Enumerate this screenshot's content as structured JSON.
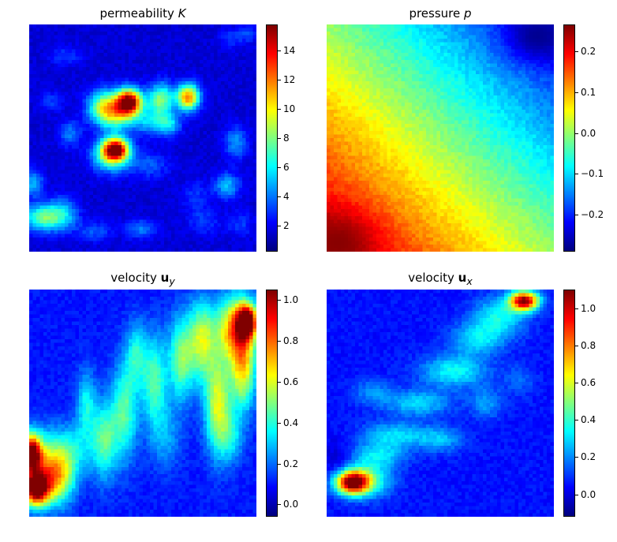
{
  "chart_data": [
    {
      "type": "heatmap",
      "title_text": "permeability ",
      "title_var": "K",
      "title_var_style": "italic",
      "colormap": "jet",
      "colorbar_range": [
        0.2,
        15.8
      ],
      "colorbar_ticks": [
        2,
        4,
        6,
        8,
        10,
        12,
        14
      ],
      "colorbar_tick_labels": [
        "2",
        "4",
        "6",
        "8",
        "10",
        "12",
        "14"
      ],
      "axes_visible": false,
      "background_level": 1.5,
      "features": [
        {
          "x": 0.44,
          "y": 0.66,
          "value": 15.5,
          "rx": 0.04,
          "ry": 0.04
        },
        {
          "x": 0.33,
          "y": 0.64,
          "value": 8,
          "rx": 0.05,
          "ry": 0.05
        },
        {
          "x": 0.39,
          "y": 0.6,
          "value": 7,
          "rx": 0.06,
          "ry": 0.05
        },
        {
          "x": 0.58,
          "y": 0.67,
          "value": 8,
          "rx": 0.04,
          "ry": 0.05
        },
        {
          "x": 0.7,
          "y": 0.68,
          "value": 12,
          "rx": 0.035,
          "ry": 0.04
        },
        {
          "x": 0.54,
          "y": 0.57,
          "value": 5,
          "rx": 0.05,
          "ry": 0.04
        },
        {
          "x": 0.62,
          "y": 0.56,
          "value": 5,
          "rx": 0.035,
          "ry": 0.035
        },
        {
          "x": 0.38,
          "y": 0.45,
          "value": 14,
          "rx": 0.04,
          "ry": 0.035
        },
        {
          "x": 0.36,
          "y": 0.42,
          "value": 7,
          "rx": 0.06,
          "ry": 0.05
        },
        {
          "x": 0.05,
          "y": 0.15,
          "value": 7,
          "rx": 0.05,
          "ry": 0.04
        },
        {
          "x": 0.14,
          "y": 0.16,
          "value": 6,
          "rx": 0.05,
          "ry": 0.05
        },
        {
          "x": 0.02,
          "y": 0.3,
          "value": 5,
          "rx": 0.03,
          "ry": 0.04
        },
        {
          "x": 0.87,
          "y": 0.29,
          "value": 5,
          "rx": 0.04,
          "ry": 0.04
        },
        {
          "x": 0.91,
          "y": 0.48,
          "value": 4.5,
          "rx": 0.035,
          "ry": 0.05
        },
        {
          "x": 0.18,
          "y": 0.52,
          "value": 4,
          "rx": 0.035,
          "ry": 0.04
        },
        {
          "x": 0.29,
          "y": 0.09,
          "value": 3.5,
          "rx": 0.05,
          "ry": 0.03
        },
        {
          "x": 0.49,
          "y": 0.1,
          "value": 4,
          "rx": 0.05,
          "ry": 0.03
        },
        {
          "x": 0.53,
          "y": 0.38,
          "value": 3.5,
          "rx": 0.06,
          "ry": 0.04
        },
        {
          "x": 0.73,
          "y": 0.24,
          "value": 3,
          "rx": 0.04,
          "ry": 0.05
        },
        {
          "x": 0.89,
          "y": 0.94,
          "value": 3,
          "rx": 0.035,
          "ry": 0.03
        },
        {
          "x": 0.96,
          "y": 0.96,
          "value": 3,
          "rx": 0.03,
          "ry": 0.03
        },
        {
          "x": 0.1,
          "y": 0.66,
          "value": 3,
          "rx": 0.04,
          "ry": 0.03
        },
        {
          "x": 0.16,
          "y": 0.86,
          "value": 3,
          "rx": 0.05,
          "ry": 0.03
        },
        {
          "x": 0.77,
          "y": 0.13,
          "value": 3,
          "rx": 0.05,
          "ry": 0.04
        },
        {
          "x": 0.93,
          "y": 0.12,
          "value": 3,
          "rx": 0.04,
          "ry": 0.04
        }
      ]
    },
    {
      "type": "heatmap",
      "title_text": "pressure ",
      "title_var": "p",
      "title_var_style": "italic",
      "colormap": "jet",
      "colorbar_range": [
        -0.29,
        0.265
      ],
      "colorbar_ticks": [
        -0.2,
        -0.1,
        0.0,
        0.1,
        0.2
      ],
      "colorbar_tick_labels": [
        "−0.2",
        "−0.1",
        "0.0",
        "0.1",
        "0.2"
      ],
      "axes_visible": false,
      "field": "linear-gradient",
      "gradient_model": {
        "bottom_left": 0.24,
        "top_right": -0.24,
        "mid": 0.0
      },
      "features": [
        {
          "x": 0.05,
          "y": 0.04,
          "value": 0.26,
          "rx": 0.12,
          "ry": 0.1
        },
        {
          "x": 0.93,
          "y": 0.95,
          "value": -0.28,
          "rx": 0.1,
          "ry": 0.08
        }
      ]
    },
    {
      "type": "heatmap",
      "title_text": "velocity ",
      "title_var": "u",
      "title_var_style": "bold",
      "title_sub": "y",
      "colormap": "jet",
      "colorbar_range": [
        -0.06,
        1.05
      ],
      "colorbar_ticks": [
        0.0,
        0.2,
        0.4,
        0.6,
        0.8,
        1.0
      ],
      "colorbar_tick_labels": [
        "0.0",
        "0.2",
        "0.4",
        "0.6",
        "0.8",
        "1.0"
      ],
      "axes_visible": false,
      "background_level": 0.1,
      "features": [
        {
          "x": 0.03,
          "y": 0.12,
          "value": 1.0,
          "rx": 0.04,
          "ry": 0.05
        },
        {
          "x": 0.01,
          "y": 0.28,
          "value": 0.95,
          "rx": 0.03,
          "ry": 0.06
        },
        {
          "x": 0.07,
          "y": 0.22,
          "value": 0.55,
          "rx": 0.07,
          "ry": 0.1
        },
        {
          "x": 0.13,
          "y": 0.17,
          "value": 0.45,
          "rx": 0.05,
          "ry": 0.08
        },
        {
          "x": 0.33,
          "y": 0.34,
          "value": 0.45,
          "rx": 0.04,
          "ry": 0.12
        },
        {
          "x": 0.42,
          "y": 0.47,
          "value": 0.45,
          "rx": 0.04,
          "ry": 0.15
        },
        {
          "x": 0.55,
          "y": 0.6,
          "value": 0.45,
          "rx": 0.04,
          "ry": 0.14
        },
        {
          "x": 0.67,
          "y": 0.7,
          "value": 0.5,
          "rx": 0.04,
          "ry": 0.13
        },
        {
          "x": 0.76,
          "y": 0.78,
          "value": 0.55,
          "rx": 0.04,
          "ry": 0.12
        },
        {
          "x": 0.83,
          "y": 0.5,
          "value": 0.6,
          "rx": 0.04,
          "ry": 0.15
        },
        {
          "x": 0.91,
          "y": 0.83,
          "value": 0.75,
          "rx": 0.06,
          "ry": 0.1
        },
        {
          "x": 0.96,
          "y": 0.86,
          "value": 0.9,
          "rx": 0.03,
          "ry": 0.05
        },
        {
          "x": 0.94,
          "y": 0.64,
          "value": 0.6,
          "rx": 0.04,
          "ry": 0.12
        },
        {
          "x": 0.25,
          "y": 0.5,
          "value": 0.35,
          "rx": 0.03,
          "ry": 0.1
        },
        {
          "x": 0.47,
          "y": 0.72,
          "value": 0.35,
          "rx": 0.03,
          "ry": 0.1
        },
        {
          "x": 0.2,
          "y": 0.3,
          "value": 0.3,
          "rx": 0.06,
          "ry": 0.08
        },
        {
          "x": 0.6,
          "y": 0.35,
          "value": 0.25,
          "rx": 0.05,
          "ry": 0.1
        },
        {
          "x": 0.89,
          "y": 0.35,
          "value": 0.3,
          "rx": 0.04,
          "ry": 0.08
        }
      ]
    },
    {
      "type": "heatmap",
      "title_text": "velocity ",
      "title_var": "u",
      "title_var_style": "bold",
      "title_sub": "x",
      "colormap": "jet",
      "colorbar_range": [
        -0.12,
        1.1
      ],
      "colorbar_ticks": [
        0.0,
        0.2,
        0.4,
        0.6,
        0.8,
        1.0
      ],
      "colorbar_tick_labels": [
        "0.0",
        "0.2",
        "0.4",
        "0.6",
        "0.8",
        "1.0"
      ],
      "axes_visible": false,
      "background_level": 0.05,
      "features": [
        {
          "x": 0.87,
          "y": 0.95,
          "value": 1.08,
          "rx": 0.045,
          "ry": 0.03
        },
        {
          "x": 0.11,
          "y": 0.15,
          "value": 0.95,
          "rx": 0.05,
          "ry": 0.035
        },
        {
          "x": 0.16,
          "y": 0.16,
          "value": 0.5,
          "rx": 0.08,
          "ry": 0.05
        },
        {
          "x": 0.76,
          "y": 0.88,
          "value": 0.35,
          "rx": 0.08,
          "ry": 0.06
        },
        {
          "x": 0.56,
          "y": 0.64,
          "value": 0.35,
          "rx": 0.1,
          "ry": 0.05
        },
        {
          "x": 0.4,
          "y": 0.5,
          "value": 0.3,
          "rx": 0.1,
          "ry": 0.04
        },
        {
          "x": 0.3,
          "y": 0.36,
          "value": 0.3,
          "rx": 0.1,
          "ry": 0.04
        },
        {
          "x": 0.66,
          "y": 0.78,
          "value": 0.3,
          "rx": 0.08,
          "ry": 0.05
        },
        {
          "x": 0.23,
          "y": 0.27,
          "value": 0.3,
          "rx": 0.08,
          "ry": 0.04
        },
        {
          "x": 0.5,
          "y": 0.34,
          "value": 0.25,
          "rx": 0.07,
          "ry": 0.04
        },
        {
          "x": 0.7,
          "y": 0.5,
          "value": 0.22,
          "rx": 0.05,
          "ry": 0.05
        },
        {
          "x": 0.2,
          "y": 0.55,
          "value": 0.2,
          "rx": 0.06,
          "ry": 0.04
        },
        {
          "x": 0.85,
          "y": 0.6,
          "value": 0.15,
          "rx": 0.05,
          "ry": 0.05
        },
        {
          "x": 0.05,
          "y": 0.22,
          "value": -0.05,
          "rx": 0.05,
          "ry": 0.08
        }
      ]
    }
  ]
}
